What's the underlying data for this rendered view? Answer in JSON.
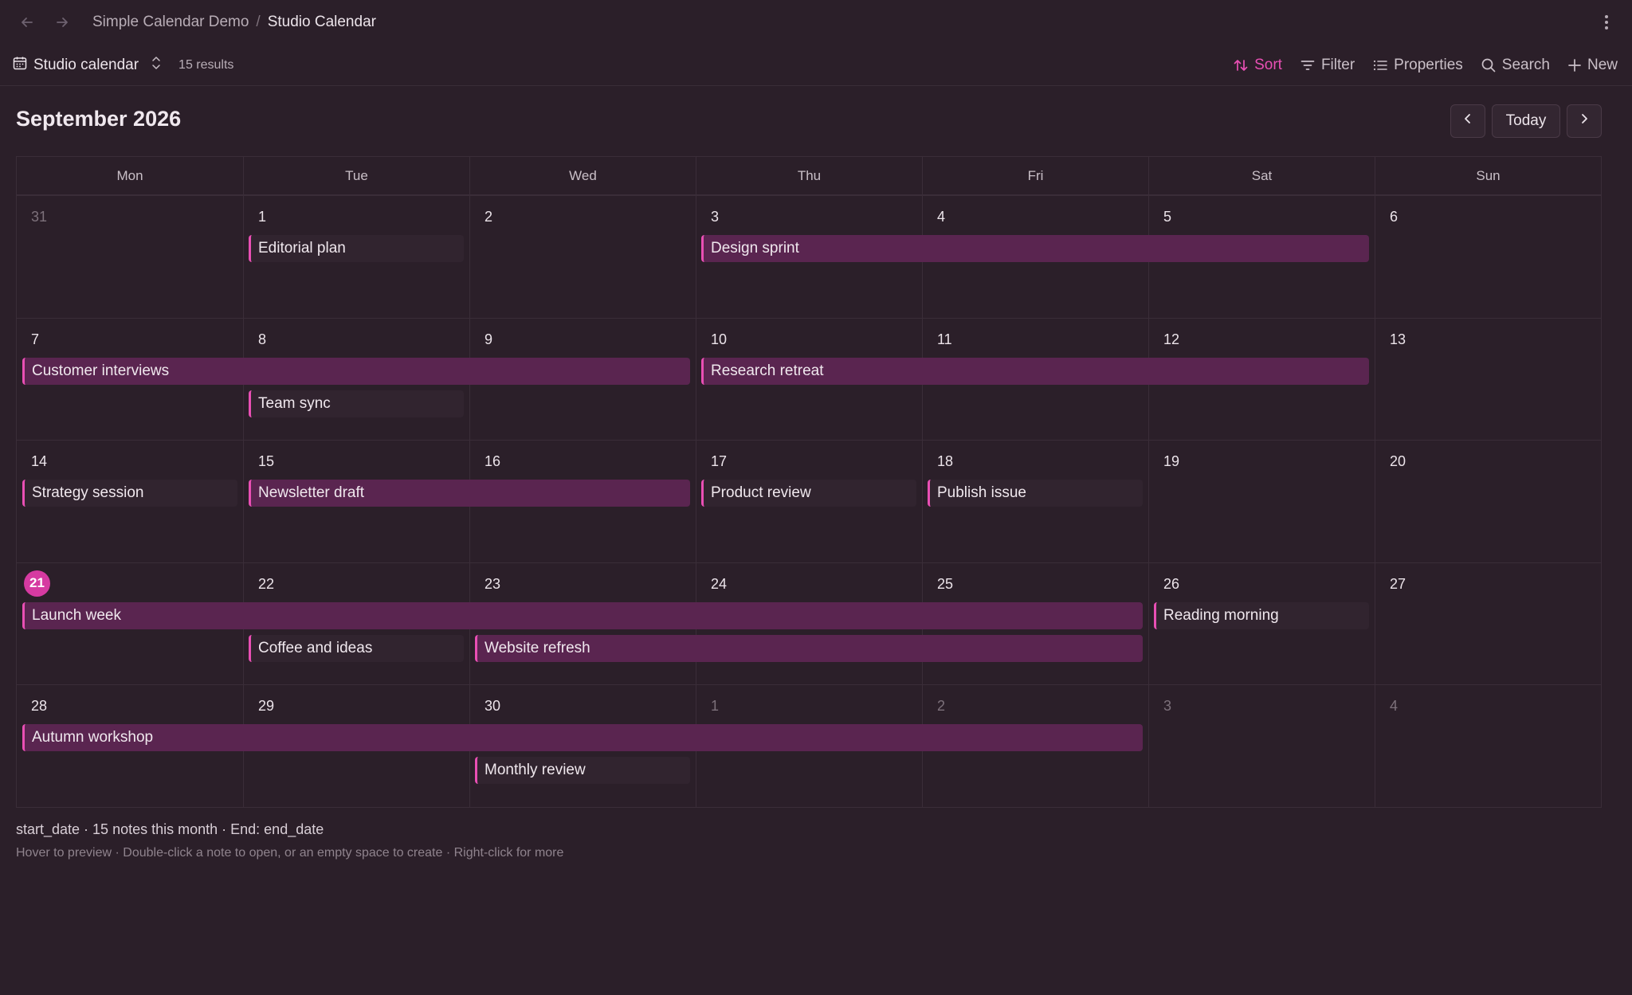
{
  "breadcrumb": {
    "parent": "Simple Calendar Demo",
    "separator": "/",
    "current": "Studio Calendar"
  },
  "toolbar": {
    "view_name": "Studio calendar",
    "result_count": "15 results",
    "sort_label": "Sort",
    "filter_label": "Filter",
    "properties_label": "Properties",
    "search_label": "Search",
    "new_label": "New"
  },
  "calendar": {
    "month_title": "September 2026",
    "today_label": "Today",
    "weekdays": [
      "Mon",
      "Tue",
      "Wed",
      "Thu",
      "Fri",
      "Sat",
      "Sun"
    ],
    "weeks": [
      [
        {
          "d": "31",
          "out": true
        },
        {
          "d": "1"
        },
        {
          "d": "2"
        },
        {
          "d": "3"
        },
        {
          "d": "4"
        },
        {
          "d": "5"
        },
        {
          "d": "6"
        }
      ],
      [
        {
          "d": "7"
        },
        {
          "d": "8"
        },
        {
          "d": "9"
        },
        {
          "d": "10"
        },
        {
          "d": "11"
        },
        {
          "d": "12"
        },
        {
          "d": "13"
        }
      ],
      [
        {
          "d": "14"
        },
        {
          "d": "15"
        },
        {
          "d": "16"
        },
        {
          "d": "17"
        },
        {
          "d": "18"
        },
        {
          "d": "19"
        },
        {
          "d": "20"
        }
      ],
      [
        {
          "d": "21",
          "today": true
        },
        {
          "d": "22"
        },
        {
          "d": "23"
        },
        {
          "d": "24"
        },
        {
          "d": "25"
        },
        {
          "d": "26"
        },
        {
          "d": "27"
        }
      ],
      [
        {
          "d": "28"
        },
        {
          "d": "29"
        },
        {
          "d": "30"
        },
        {
          "d": "1",
          "out": true
        },
        {
          "d": "2",
          "out": true
        },
        {
          "d": "3",
          "out": true
        },
        {
          "d": "4",
          "out": true
        }
      ]
    ],
    "events": [
      {
        "title": "Editorial plan",
        "week": 0,
        "start_col": 1,
        "span": 1,
        "lane": 0
      },
      {
        "title": "Design sprint",
        "week": 0,
        "start_col": 3,
        "span": 3,
        "lane": 0
      },
      {
        "title": "Customer interviews",
        "week": 1,
        "start_col": 0,
        "span": 3,
        "lane": 0
      },
      {
        "title": "Research retreat",
        "week": 1,
        "start_col": 3,
        "span": 3,
        "lane": 0
      },
      {
        "title": "Team sync",
        "week": 1,
        "start_col": 1,
        "span": 1,
        "lane": 1
      },
      {
        "title": "Strategy session",
        "week": 2,
        "start_col": 0,
        "span": 1,
        "lane": 0
      },
      {
        "title": "Newsletter draft",
        "week": 2,
        "start_col": 1,
        "span": 2,
        "lane": 0
      },
      {
        "title": "Product review",
        "week": 2,
        "start_col": 3,
        "span": 1,
        "lane": 0
      },
      {
        "title": "Publish issue",
        "week": 2,
        "start_col": 4,
        "span": 1,
        "lane": 0
      },
      {
        "title": "Launch week",
        "week": 3,
        "start_col": 0,
        "span": 5,
        "lane": 0
      },
      {
        "title": "Reading morning",
        "week": 3,
        "start_col": 5,
        "span": 1,
        "lane": 0
      },
      {
        "title": "Coffee and ideas",
        "week": 3,
        "start_col": 1,
        "span": 1,
        "lane": 1
      },
      {
        "title": "Website refresh",
        "week": 3,
        "start_col": 2,
        "span": 3,
        "lane": 1
      },
      {
        "title": "Autumn workshop",
        "week": 4,
        "start_col": 0,
        "span": 5,
        "lane": 0
      },
      {
        "title": "Monthly review",
        "week": 4,
        "start_col": 2,
        "span": 1,
        "lane": 1
      }
    ]
  },
  "footer": {
    "summary": "start_date · 15 notes this month · End: end_date",
    "hint": "Hover to preview · Double-click a note to open, or an empty space to create · Right-click for more"
  },
  "colors": {
    "accent": "#e94fb4",
    "span_bg": "#5a2550",
    "today_badge": "#d63aa1",
    "background": "#2b1f29"
  },
  "icons": [
    "back-arrow-icon",
    "forward-arrow-icon",
    "more-vertical-icon",
    "calendar-icon",
    "chevron-updown-icon",
    "sort-icon",
    "filter-icon",
    "properties-icon",
    "search-icon",
    "plus-icon",
    "chevron-left-icon",
    "chevron-right-icon"
  ]
}
